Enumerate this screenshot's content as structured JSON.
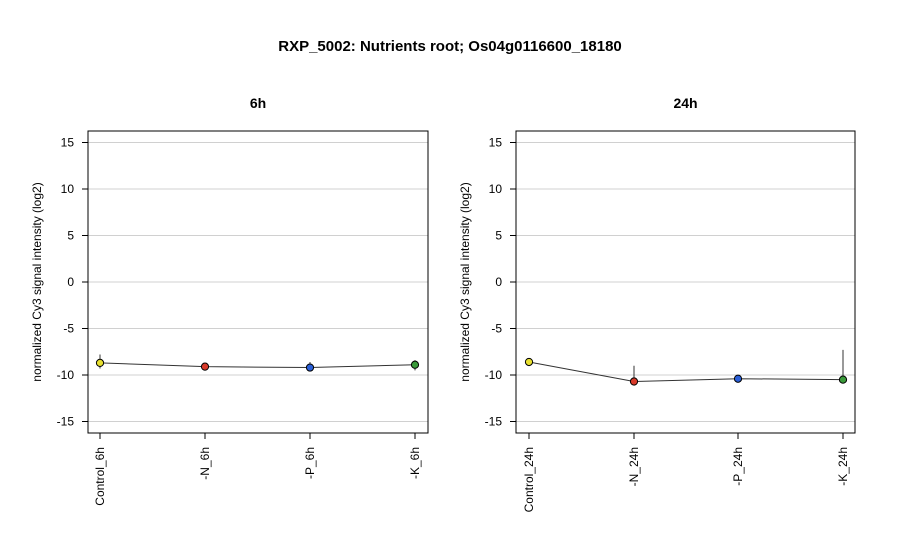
{
  "title": "RXP_5002: Nutrients root; Os04g0116600_18180",
  "chart_data": [
    {
      "type": "line",
      "title": "6h",
      "ylabel": "normalized Cy3 signal intensity (log2)",
      "ylim": [
        -16,
        16
      ],
      "yticks": [
        15,
        10,
        5,
        0,
        -5,
        -10,
        -15
      ],
      "grid": true,
      "categories": [
        "Control_6h",
        "-N_6h",
        "-P_6h",
        "-K_6h"
      ],
      "values": [
        -8.7,
        -9.1,
        -9.2,
        -8.9
      ],
      "error_low": [
        -9.3,
        -9.3,
        -9.6,
        -9.5
      ],
      "error_high": [
        -7.8,
        -8.9,
        -8.6,
        -8.4
      ],
      "point_colors": [
        "#e8e030",
        "#d83a2a",
        "#2a5fd8",
        "#3a9a3a"
      ]
    },
    {
      "type": "line",
      "title": "24h",
      "ylabel": "normalized Cy3 signal intensity (log2)",
      "ylim": [
        -16,
        16
      ],
      "yticks": [
        15,
        10,
        5,
        0,
        -5,
        -10,
        -15
      ],
      "grid": true,
      "categories": [
        "Control_24h",
        "-N_24h",
        "-P_24h",
        "-K_24h"
      ],
      "values": [
        -8.6,
        -10.7,
        -10.4,
        -10.5
      ],
      "error_low": [
        -8.8,
        -11.0,
        -10.6,
        -10.7
      ],
      "error_high": [
        -8.3,
        -9.0,
        -10.2,
        -7.3
      ],
      "point_colors": [
        "#e8e030",
        "#d83a2a",
        "#2a5fd8",
        "#3a9a3a"
      ]
    }
  ]
}
